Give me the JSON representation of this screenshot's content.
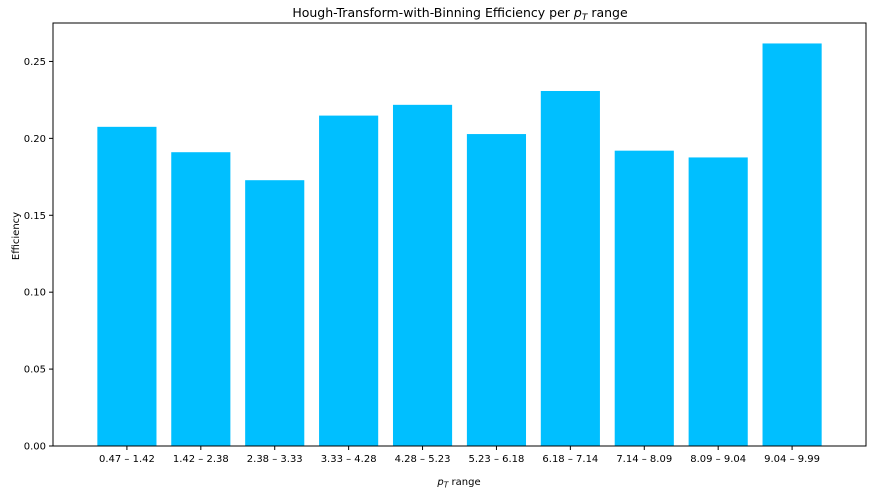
{
  "chart_data": {
    "type": "bar",
    "title_prefix": "Hough-Transform-with-Binning Efficiency per ",
    "title_var": "p",
    "title_sub": "T",
    "title_suffix": " range",
    "xlabel_var": "p",
    "xlabel_sub": "T",
    "xlabel_suffix": " range",
    "ylabel": "Efficiency",
    "categories": [
      "0.47 – 1.42",
      "1.42 – 2.38",
      "2.38 – 3.33",
      "3.33 – 4.28",
      "4.28 – 5.23",
      "5.23 – 6.18",
      "6.18 – 7.14",
      "7.14 – 8.09",
      "8.09 – 9.04",
      "9.04 – 9.99"
    ],
    "values": [
      0.2075,
      0.191,
      0.1728,
      0.2148,
      0.2218,
      0.2028,
      0.2308,
      0.192,
      0.1876,
      0.2617
    ],
    "ylim": [
      0,
      0.275
    ],
    "yticks": [
      0.0,
      0.05,
      0.1,
      0.15,
      0.2,
      0.25
    ],
    "ytick_labels": [
      "0.00",
      "0.05",
      "0.10",
      "0.15",
      "0.20",
      "0.25"
    ],
    "bar_color": "#00bfff",
    "grid": false,
    "legend": "none"
  }
}
